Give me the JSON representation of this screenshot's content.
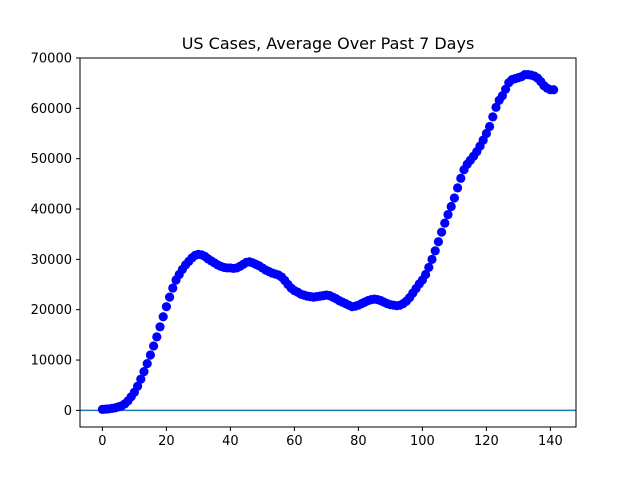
{
  "chart_data": {
    "type": "scatter",
    "title": "US Cases, Average Over Past 7 Days",
    "xlabel": "",
    "ylabel": "",
    "xlim": [
      -7,
      148
    ],
    "ylim": [
      -3300,
      70000
    ],
    "x_ticks": [
      0,
      20,
      40,
      60,
      80,
      100,
      120,
      140
    ],
    "x_tick_labels": [
      "0",
      "20",
      "40",
      "60",
      "80",
      "100",
      "120",
      "140"
    ],
    "y_ticks": [
      0,
      10000,
      20000,
      30000,
      40000,
      50000,
      60000,
      70000
    ],
    "y_tick_labels": [
      "0",
      "10000",
      "20000",
      "30000",
      "40000",
      "50000",
      "60000",
      "70000"
    ],
    "grid": false,
    "reference_line": {
      "y": 0,
      "color": "#1f77b4"
    },
    "series": [
      {
        "color": "#0000ff",
        "x": [
          0,
          1,
          2,
          3,
          4,
          5,
          6,
          7,
          8,
          9,
          10,
          11,
          12,
          13,
          14,
          15,
          16,
          17,
          18,
          19,
          20,
          21,
          22,
          23,
          24,
          25,
          26,
          27,
          28,
          29,
          30,
          31,
          32,
          33,
          34,
          35,
          36,
          37,
          38,
          39,
          40,
          41,
          42,
          43,
          44,
          45,
          46,
          47,
          48,
          49,
          50,
          51,
          52,
          53,
          54,
          55,
          56,
          57,
          58,
          59,
          60,
          61,
          62,
          63,
          64,
          65,
          66,
          67,
          68,
          69,
          70,
          71,
          72,
          73,
          74,
          75,
          76,
          77,
          78,
          79,
          80,
          81,
          82,
          83,
          84,
          85,
          86,
          87,
          88,
          89,
          90,
          91,
          92,
          93,
          94,
          95,
          96,
          97,
          98,
          99,
          100,
          101,
          102,
          103,
          104,
          105,
          106,
          107,
          108,
          109,
          110,
          111,
          112,
          113,
          114,
          115,
          116,
          117,
          118,
          119,
          120,
          121,
          122,
          123,
          124,
          125,
          126,
          127,
          128,
          129,
          130,
          131,
          132,
          133,
          134,
          135,
          136,
          137,
          138,
          139,
          140,
          141
        ],
        "y": [
          200,
          250,
          300,
          400,
          500,
          700,
          900,
          1300,
          1900,
          2700,
          3600,
          4800,
          6200,
          7700,
          9300,
          11000,
          12800,
          14600,
          16600,
          18600,
          20600,
          22500,
          24300,
          25900,
          27000,
          28000,
          28900,
          29600,
          30300,
          30800,
          31000,
          30900,
          30600,
          30100,
          29700,
          29300,
          28900,
          28600,
          28400,
          28300,
          28300,
          28200,
          28300,
          28600,
          29000,
          29400,
          29500,
          29300,
          29000,
          28700,
          28300,
          27900,
          27600,
          27300,
          27100,
          26900,
          26500,
          25800,
          25000,
          24300,
          23800,
          23500,
          23100,
          22900,
          22700,
          22600,
          22500,
          22600,
          22700,
          22800,
          22900,
          22800,
          22500,
          22200,
          21800,
          21500,
          21200,
          20900,
          20600,
          20700,
          20900,
          21200,
          21500,
          21800,
          22000,
          22100,
          22000,
          21800,
          21500,
          21200,
          21000,
          20900,
          20800,
          20900,
          21200,
          21700,
          22400,
          23300,
          24200,
          25100,
          25900,
          27000,
          28400,
          30000,
          31700,
          33500,
          35400,
          37200,
          38900,
          40500,
          42200,
          44200,
          46100,
          47800,
          48900,
          49700,
          50500,
          51400,
          52500,
          53700,
          55000,
          56400,
          58300,
          60200,
          61600,
          62500,
          63800,
          65100,
          65700,
          65900,
          66100,
          66300,
          66700,
          66700,
          66600,
          66400,
          66000,
          65300,
          64500,
          64000,
          63700,
          63700
        ]
      }
    ]
  }
}
